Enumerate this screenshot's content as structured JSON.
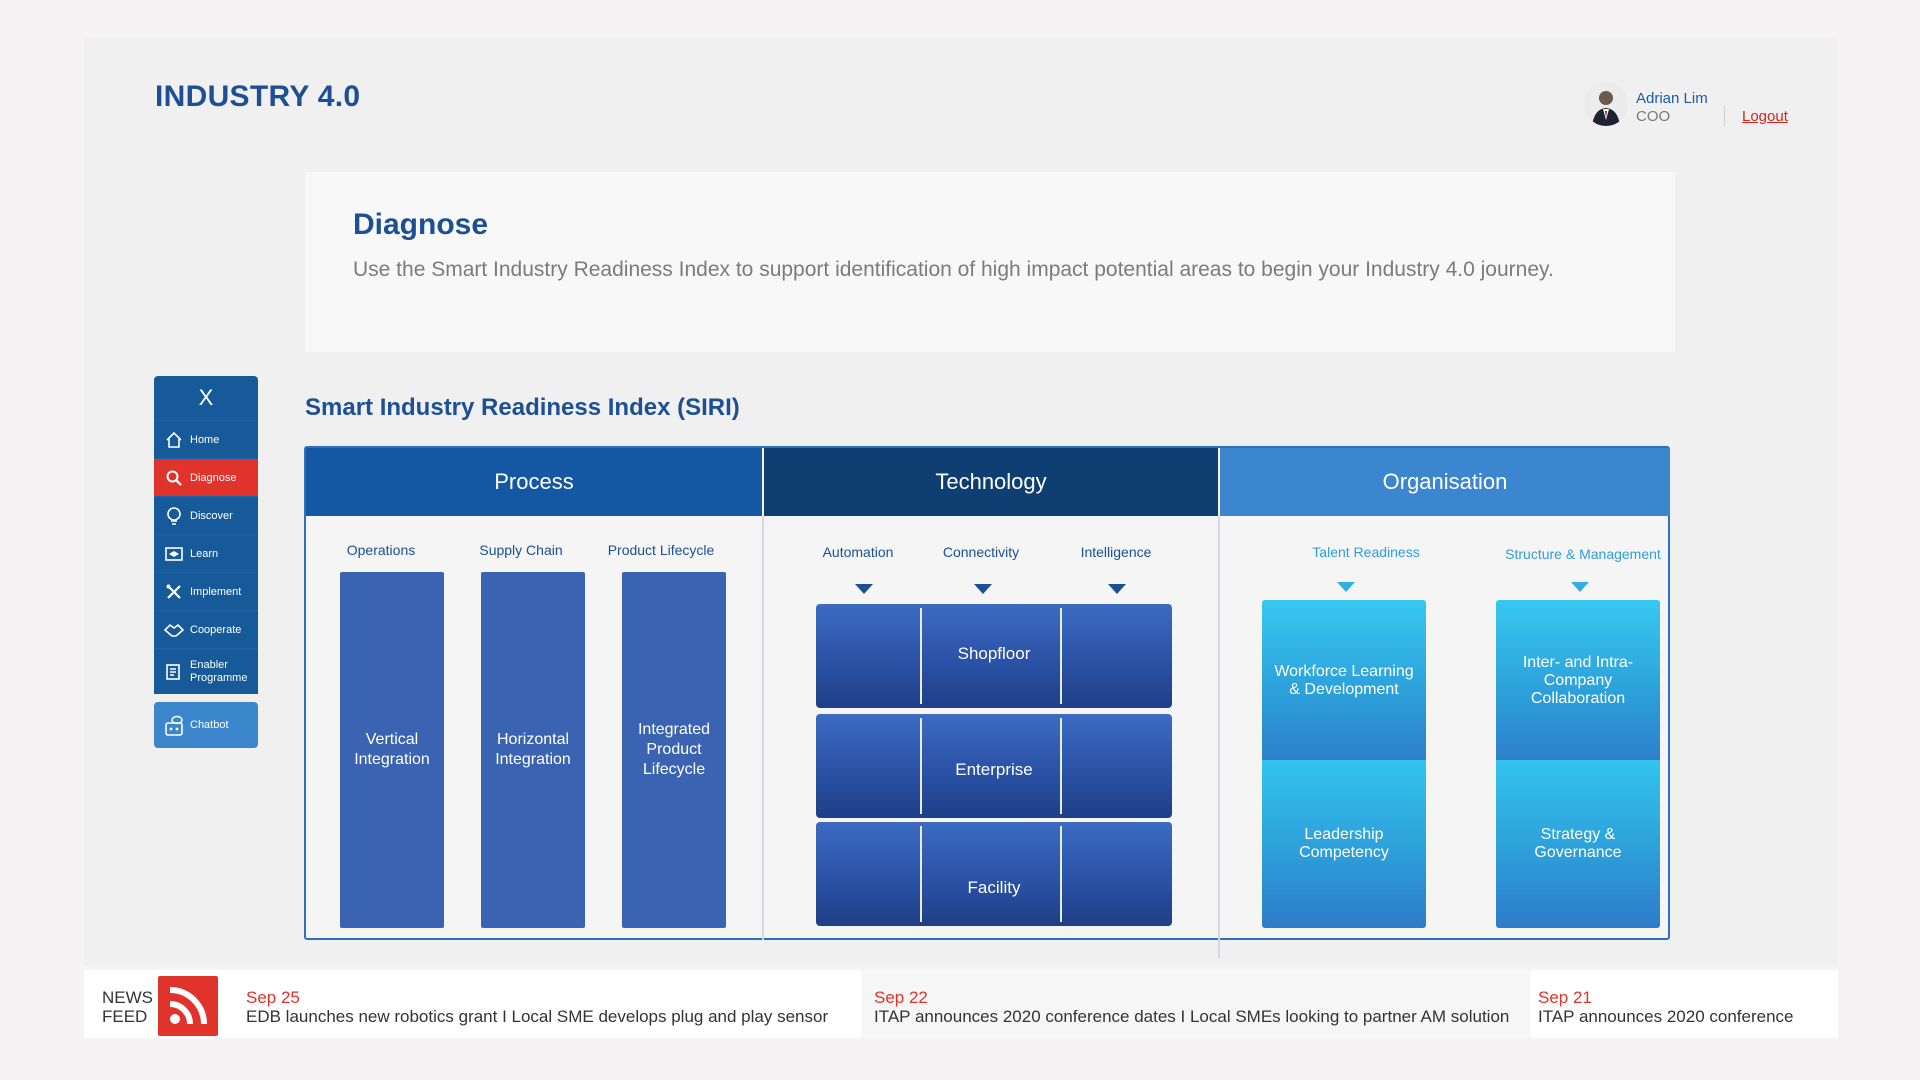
{
  "app_title": "INDUSTRY 4.0",
  "user": {
    "name": "Adrian Lim",
    "role": "COO",
    "logout": "Logout"
  },
  "diagnose": {
    "title": "Diagnose",
    "description": "Use the Smart Industry Readiness Index to support identification of high impact potential areas to begin your Industry 4.0 journey."
  },
  "sidebar": {
    "close": "X",
    "items": [
      {
        "label": "Home",
        "icon": "home-icon"
      },
      {
        "label": "Diagnose",
        "icon": "search-icon",
        "active": true
      },
      {
        "label": "Discover",
        "icon": "lightbulb-icon"
      },
      {
        "label": "Learn",
        "icon": "learn-icon"
      },
      {
        "label": "Implement",
        "icon": "tools-icon"
      },
      {
        "label": "Cooperate",
        "icon": "handshake-icon"
      },
      {
        "label": "Enabler Programme",
        "icon": "document-icon"
      }
    ],
    "chatbot": {
      "label": "Chatbot",
      "icon": "chatbot-icon"
    }
  },
  "siri": {
    "title": "Smart Industry Readiness Index (SIRI)",
    "headers": {
      "process": "Process",
      "technology": "Technology",
      "organisation": "Organisation"
    },
    "process": {
      "subheaders": [
        "Operations",
        "Supply Chain",
        "Product Lifecycle"
      ],
      "columns": [
        "Vertical Integration",
        "Horizontal Integration",
        "Integrated Product Lifecycle"
      ]
    },
    "technology": {
      "subheaders": [
        "Automation",
        "Connectivity",
        "Intelligence"
      ],
      "rows": [
        "Shopfloor",
        "Enterprise",
        "Facility"
      ]
    },
    "organisation": {
      "subheaders": [
        "Talent Readiness",
        "Structure & Management"
      ],
      "blocks": {
        "talent_top": "Workforce Learning & Development",
        "talent_bottom": "Leadership Competency",
        "structure_top": "Inter- and Intra-Company Collaboration",
        "structure_bottom": "Strategy & Governance"
      }
    }
  },
  "news": {
    "label_line1": "NEWS",
    "label_line2": "FEED",
    "items": [
      {
        "date": "Sep 25",
        "text": "EDB launches new robotics grant  I   Local SME develops plug and play sensor"
      },
      {
        "date": "Sep 22",
        "text": "ITAP announces 2020 conference dates  I   Local SMEs looking to partner AM solution"
      },
      {
        "date": "Sep 21",
        "text": "ITAP announces 2020 conference"
      }
    ]
  },
  "colors": {
    "brand_blue": "#1c4f94",
    "accent_red": "#e0332b",
    "process_header": "#1458a3",
    "technology_header": "#0f3e72",
    "organisation_header": "#3c86d0"
  }
}
